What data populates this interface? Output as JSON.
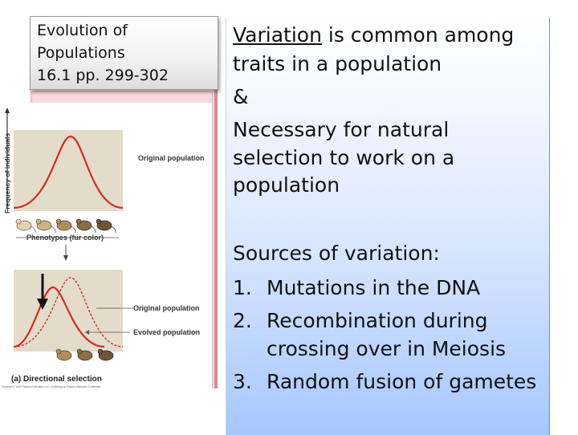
{
  "title": {
    "line1": "Evolution of",
    "line2": "Populations",
    "line3": "16.1 pp. 299-302"
  },
  "figure": {
    "axis_label": "Frequency of individuals",
    "original_population_label": "Original population",
    "phenotypes_label": "Phenotypes (fur color)",
    "original_population_label_2": "Original population",
    "evolved_population_label": "Evolved population",
    "panel_caption": "(a) Directional selection",
    "copyright": "Copyright © 2006 Pearson Education, Inc., publishing as Pearson Benjamin Cummings",
    "colors": {
      "curve": "#d62b20",
      "panel": "#e4dccb"
    }
  },
  "body": {
    "p1_word": "Variation",
    "p1_rest": " is common among",
    "p1_line2": "traits in a population",
    "p1_amp": "&",
    "p2_line1": "Necessary for natural",
    "p2_line2": "selection to work on a",
    "p2_line3": "population",
    "sources_heading": "Sources of variation:",
    "items": [
      {
        "num": "1.",
        "text": "Mutations in the DNA"
      },
      {
        "num": "2.",
        "text": "Recombination during",
        "cont": "crossing over in Meiosis"
      },
      {
        "num": "3.",
        "text": "Random fusion of gametes"
      }
    ]
  }
}
